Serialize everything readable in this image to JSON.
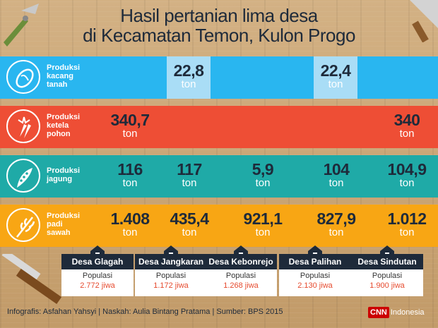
{
  "title": {
    "line1": "Hasil pertanian lima desa",
    "line2": "di Kecamatan Temon, Kulon Progo"
  },
  "chart_data": {
    "type": "table",
    "title": "Hasil pertanian lima desa di Kecamatan Temon, Kulon Progo",
    "unit": "ton",
    "columns": [
      "Desa Glagah",
      "Desa Jangkaran",
      "Desa Kebonrejo",
      "Desa Palihan",
      "Desa Sindutan"
    ],
    "rows": [
      {
        "label_lines": [
          "Produksi",
          "kacang",
          "tanah"
        ],
        "icon": "peanut-icon",
        "color": "#29b6f0",
        "highlight": "#a9ddf6",
        "values": [
          "",
          "22,8",
          "",
          "22,4",
          ""
        ]
      },
      {
        "label_lines": [
          "Produksi",
          "ketela",
          "pohon"
        ],
        "icon": "cassava-icon",
        "color": "#ee4e35",
        "highlight": "#f58f78",
        "values": [
          "340,7",
          "",
          "",
          "",
          "340"
        ]
      },
      {
        "label_lines": [
          "Produksi",
          "jagung"
        ],
        "icon": "corn-icon",
        "color": "#1faaa7",
        "highlight": "#7dcfcb",
        "values": [
          "116",
          "117",
          "5,9",
          "104",
          "104,9"
        ]
      },
      {
        "label_lines": [
          "Produksi",
          "padi",
          "sawah"
        ],
        "icon": "rice-icon",
        "color": "#f8a614",
        "highlight": "#fbc664",
        "values": [
          "1.408",
          "435,4",
          "921,1",
          "827,9",
          "1.012"
        ]
      }
    ],
    "villages": [
      {
        "name": "Desa Glagah",
        "population_label": "Populasi",
        "population": "2.772 jiwa"
      },
      {
        "name": "Desa Jangkaran",
        "population_label": "Populasi",
        "population": "1.172 jiwa"
      },
      {
        "name": "Desa Kebonrejo",
        "population_label": "Populasi",
        "population": "1.268 jiwa"
      },
      {
        "name": "Desa Palihan",
        "population_label": "Populasi",
        "population": "2.130 jiwa"
      },
      {
        "name": "Desa Sindutan",
        "population_label": "Populasi",
        "population": "1.900 jiwa"
      }
    ]
  },
  "footer": "Infografis: Asfahan Yahsyi | Naskah: Aulia Bintang Pratama | Sumber: BPS 2015",
  "brand": {
    "logo": "CNN",
    "name": "Indonesia",
    "logo_color": "#cc0000"
  },
  "colors": {
    "text_dark": "#1e2a3a",
    "population_value": "#e64a2e"
  }
}
